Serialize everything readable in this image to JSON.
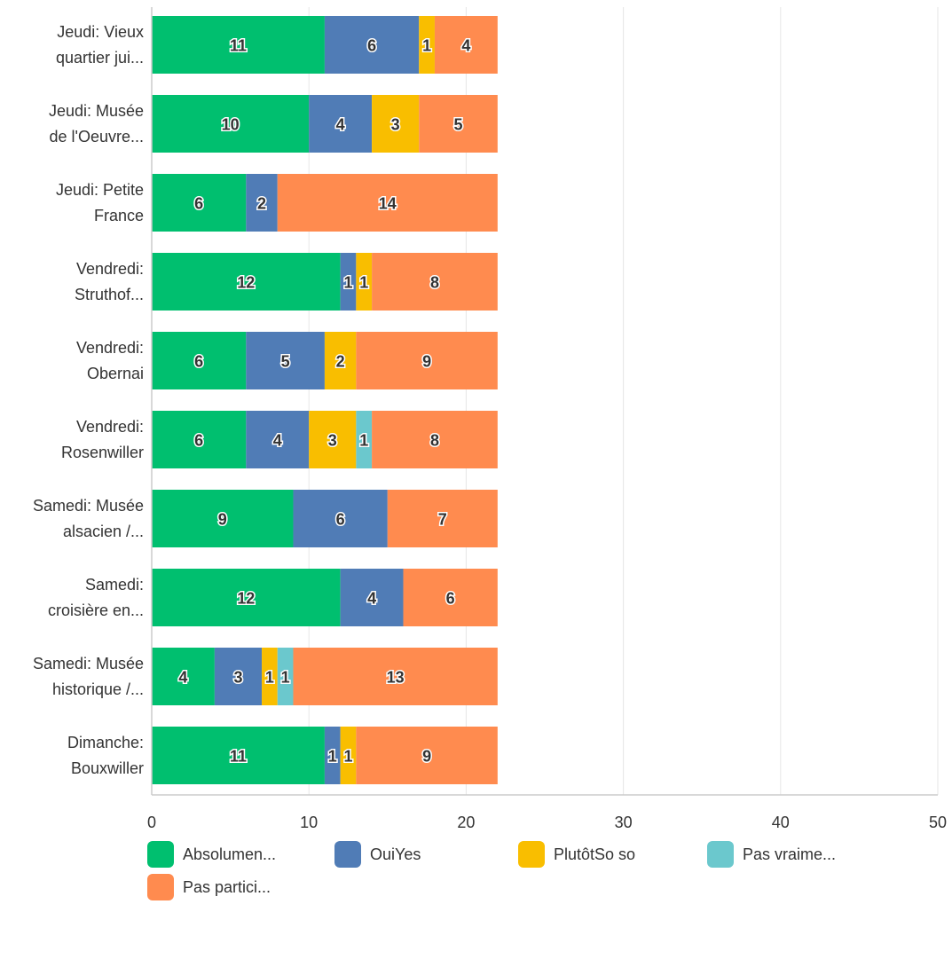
{
  "chart_data": {
    "type": "bar",
    "orientation": "horizontal",
    "stacked": true,
    "categories": [
      [
        "Jeudi: Vieux",
        "quartier jui..."
      ],
      [
        "Jeudi: Musée",
        "de l'Oeuvre..."
      ],
      [
        "Jeudi: Petite",
        "France"
      ],
      [
        "Vendredi:",
        "Struthof..."
      ],
      [
        "Vendredi:",
        "Obernai"
      ],
      [
        "Vendredi:",
        "Rosenwiller"
      ],
      [
        "Samedi: Musée",
        "alsacien /..."
      ],
      [
        "Samedi:",
        "croisière en..."
      ],
      [
        "Samedi: Musée",
        "historique /..."
      ],
      [
        "Dimanche:",
        "Bouxwiller"
      ]
    ],
    "series": [
      {
        "name": "Absolumen...",
        "color": "#00BF6F",
        "values": [
          11,
          10,
          6,
          12,
          6,
          6,
          9,
          12,
          4,
          11
        ]
      },
      {
        "name": "OuiYes",
        "color": "#507CB6",
        "values": [
          6,
          4,
          2,
          1,
          5,
          4,
          6,
          4,
          3,
          1
        ]
      },
      {
        "name": "PlutôtSo so",
        "color": "#F9BE00",
        "values": [
          1,
          3,
          0,
          1,
          2,
          3,
          0,
          0,
          1,
          1
        ]
      },
      {
        "name": "Pas vraime...",
        "color": "#6BC8CD",
        "values": [
          0,
          0,
          0,
          0,
          0,
          1,
          0,
          0,
          1,
          0
        ]
      },
      {
        "name": "Pas partici...",
        "color": "#FF8B4F",
        "values": [
          4,
          5,
          14,
          8,
          9,
          8,
          7,
          6,
          13,
          9
        ]
      }
    ],
    "xlim": [
      0,
      50
    ],
    "xticks": [
      0,
      10,
      20,
      30,
      40,
      50
    ],
    "grid": true,
    "legend_position": "bottom"
  }
}
